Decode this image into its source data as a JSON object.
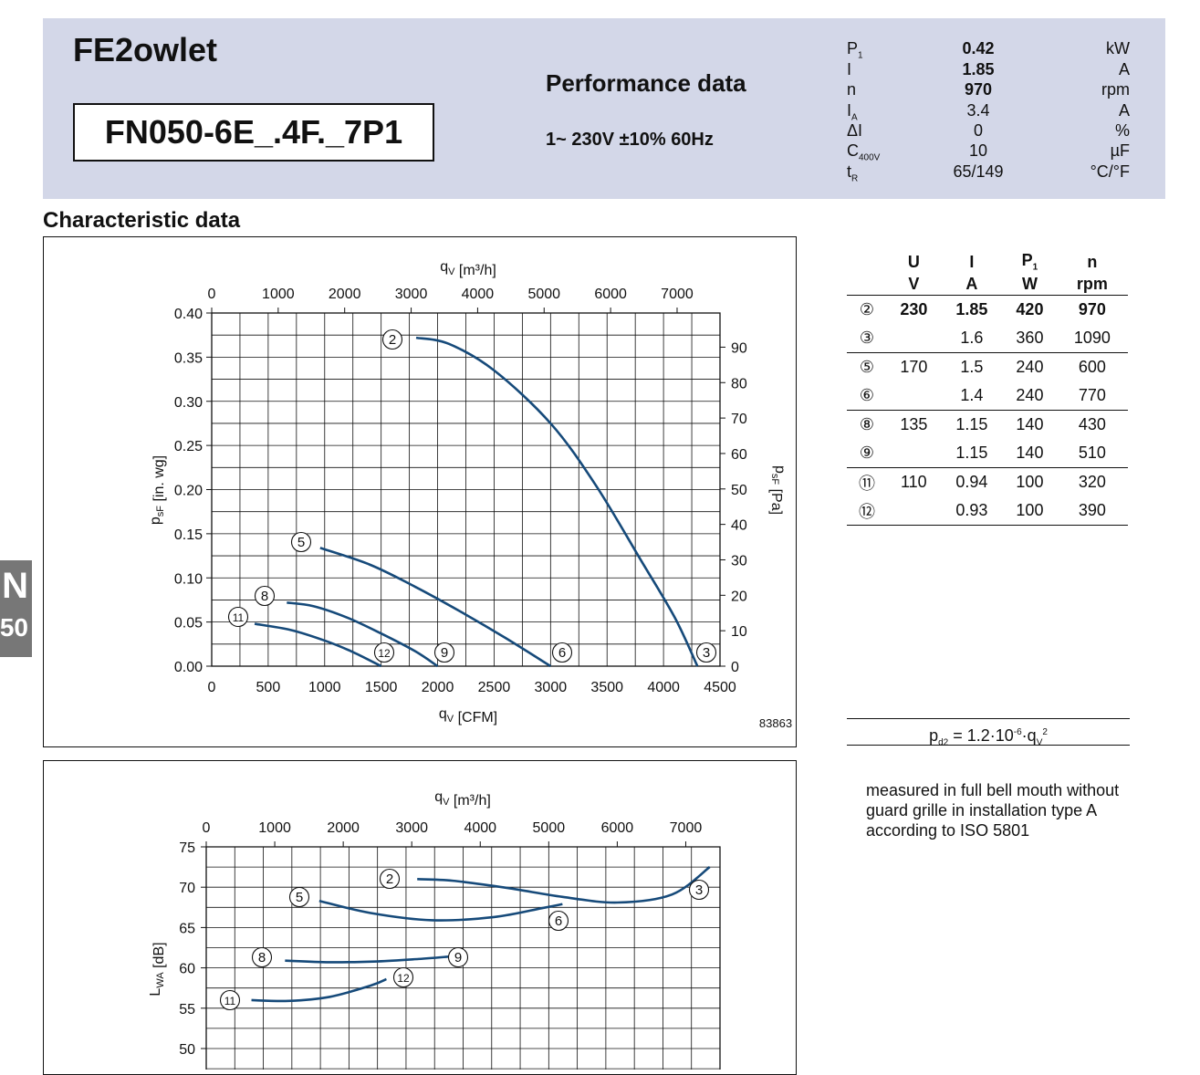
{
  "header": {
    "brand": "FE2owlet",
    "model": "FN050-6E_.4F._7P1",
    "performance_title": "Performance data",
    "voltage": "1~ 230V ±10% 60Hz",
    "params": [
      {
        "sym": "P",
        "sub": "1",
        "value": "0.42",
        "unit": "kW",
        "bold": true
      },
      {
        "sym": "I",
        "sub": "",
        "value": "1.85",
        "unit": "A",
        "bold": true
      },
      {
        "sym": "n",
        "sub": "",
        "value": "970",
        "unit": "rpm",
        "bold": true
      },
      {
        "sym": "I",
        "sub": "A",
        "value": "3.4",
        "unit": "A",
        "bold": false
      },
      {
        "sym": "ΔI",
        "sub": "",
        "value": "0",
        "unit": "%",
        "bold": false
      },
      {
        "sym": "C",
        "sub": "400V",
        "value": "10",
        "unit": "µF",
        "bold": false
      },
      {
        "sym": "t",
        "sub": "R",
        "value": "65/149",
        "unit": "°C/°F",
        "bold": false
      }
    ]
  },
  "section_title": "Characteristic data",
  "side_tab": {
    "line1": "N",
    "line2": "50"
  },
  "operating_table": {
    "headers": [
      "U",
      "I",
      "P",
      "n"
    ],
    "header_sub": [
      "",
      "",
      "1",
      ""
    ],
    "units": [
      "V",
      "A",
      "W",
      "rpm"
    ],
    "rows": [
      {
        "id": "②",
        "U": "230",
        "I": "1.85",
        "P": "420",
        "n": "970",
        "bold": true
      },
      {
        "id": "③",
        "U": "",
        "I": "1.6",
        "P": "360",
        "n": "1090",
        "bold": false
      },
      {
        "id": "⑤",
        "U": "170",
        "I": "1.5",
        "P": "240",
        "n": "600",
        "bold": false
      },
      {
        "id": "⑥",
        "U": "",
        "I": "1.4",
        "P": "240",
        "n": "770",
        "bold": false
      },
      {
        "id": "⑧",
        "U": "135",
        "I": "1.15",
        "P": "140",
        "n": "430",
        "bold": false
      },
      {
        "id": "⑨",
        "U": "",
        "I": "1.15",
        "P": "140",
        "n": "510",
        "bold": false
      },
      {
        "id": "⑪",
        "U": "110",
        "I": "0.94",
        "P": "100",
        "n": "320",
        "bold": false
      },
      {
        "id": "⑫",
        "U": "",
        "I": "0.93",
        "P": "100",
        "n": "390",
        "bold": false
      }
    ]
  },
  "formula": "p_d2 = 1.2·10^-6·q_V^2",
  "note": "measured in full bell mouth without guard grille in installation type A according to ISO 5801",
  "chart_data": [
    {
      "type": "line",
      "figure_number": "83863",
      "xlabel": "q_V [CFM]",
      "x2label": "q_V [m³/h]",
      "ylabel": "p_sF [in. wg]",
      "y2label": "p_sF [Pa]",
      "xlim": [
        0,
        4500
      ],
      "x_ticks": [
        0,
        500,
        1000,
        1500,
        2000,
        2500,
        3000,
        3500,
        4000,
        4500
      ],
      "x2_ticks": [
        0,
        1000,
        2000,
        3000,
        4000,
        5000,
        6000,
        7000
      ],
      "ylim": [
        0,
        0.4
      ],
      "y_ticks": [
        "0.00",
        "0.05",
        "0.10",
        "0.15",
        "0.20",
        "0.25",
        "0.30",
        "0.35",
        "0.40"
      ],
      "y2_ticks": [
        0,
        10,
        20,
        30,
        40,
        50,
        60,
        70,
        80,
        90
      ],
      "grid": true,
      "color": "#164a7a",
      "series": [
        {
          "name": "2-3",
          "start_label": "2",
          "end_label": "3",
          "x": [
            1810,
            2100,
            2500,
            3000,
            3400,
            3800,
            4100,
            4300
          ],
          "y": [
            0.372,
            0.365,
            0.335,
            0.275,
            0.205,
            0.12,
            0.055,
            0.0
          ]
        },
        {
          "name": "5-6",
          "start_label": "5",
          "end_label": "6",
          "x": [
            960,
            1400,
            1800,
            2200,
            2600,
            3000
          ],
          "y": [
            0.134,
            0.115,
            0.09,
            0.062,
            0.032,
            0.0
          ]
        },
        {
          "name": "8-9",
          "start_label": "8",
          "end_label": "9",
          "x": [
            665,
            900,
            1200,
            1500,
            1800,
            2000
          ],
          "y": [
            0.072,
            0.068,
            0.055,
            0.037,
            0.017,
            0.0
          ]
        },
        {
          "name": "11-12",
          "start_label": "11",
          "end_label": "12",
          "x": [
            380,
            700,
            1000,
            1250,
            1500
          ],
          "y": [
            0.048,
            0.041,
            0.029,
            0.016,
            0.0
          ]
        }
      ]
    },
    {
      "type": "line",
      "ylabel": "L_WA [dB]",
      "x2label": "q_V [m³/h]",
      "xlim": [
        0,
        7500
      ],
      "x2_ticks": [
        0,
        1000,
        2000,
        3000,
        4000,
        5000,
        6000,
        7000
      ],
      "ylim": [
        45,
        75
      ],
      "y_ticks": [
        50,
        55,
        60,
        65,
        70,
        75
      ],
      "grid": true,
      "color": "#164a7a",
      "series": [
        {
          "name": "2-3",
          "start_label": "2",
          "end_label": "3",
          "x": [
            3080,
            3600,
            4400,
            5200,
            6000,
            6800,
            7350
          ],
          "y": [
            71.0,
            70.8,
            69.9,
            68.8,
            68.1,
            69.1,
            72.5
          ]
        },
        {
          "name": "5-6",
          "start_label": "5",
          "end_label": "6",
          "x": [
            1650,
            2400,
            3300,
            4200,
            4900,
            5200
          ],
          "y": [
            68.3,
            66.8,
            65.9,
            66.3,
            67.4,
            67.9
          ]
        },
        {
          "name": "8-9",
          "start_label": "8",
          "end_label": "9",
          "x": [
            1150,
            1800,
            2500,
            3100,
            3550
          ],
          "y": [
            60.9,
            60.7,
            60.8,
            61.1,
            61.4
          ]
        },
        {
          "name": "11-12",
          "start_label": "11",
          "end_label": "12",
          "x": [
            660,
            1200,
            1800,
            2400,
            2630
          ],
          "y": [
            56.0,
            55.9,
            56.4,
            57.8,
            58.6
          ]
        }
      ]
    }
  ]
}
